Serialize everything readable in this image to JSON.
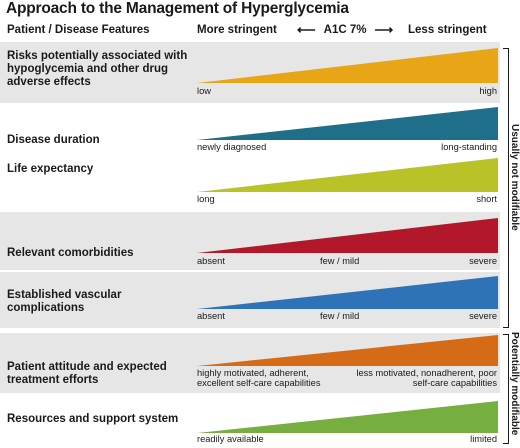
{
  "title": "Approach to the Management of Hyperglycemia",
  "header": {
    "features_label": "Patient / Disease Features",
    "more_stringent": "More stringent",
    "target": "A1C 7%",
    "less_stringent": "Less stringent",
    "arrow_left": "⟵",
    "arrow_right": "⟶"
  },
  "groups": {
    "not_modifiable": "Usually not modifiable",
    "modifiable": "Potentially modifiable"
  },
  "rows": [
    {
      "feature": "Risks potentially associated with hypoglycemia and other drug adverse effects",
      "color": "#E8A617",
      "low": "low",
      "mid": "",
      "high": "high"
    },
    {
      "feature": "Disease duration",
      "color": "#1F6F8B",
      "low": "newly diagnosed",
      "mid": "",
      "high": "long-standing"
    },
    {
      "feature": "Life expectancy",
      "color": "#B9C227",
      "low": "long",
      "mid": "",
      "high": "short"
    },
    {
      "feature": "Relevant comorbidities",
      "color": "#B3172A",
      "low": "absent",
      "mid": "few / mild",
      "high": "severe"
    },
    {
      "feature": "Established vascular complications",
      "color": "#2E73B8",
      "low": "absent",
      "mid": "few / mild",
      "high": "severe"
    },
    {
      "feature": "Patient attitude and expected treatment efforts",
      "color": "#D56B16",
      "low": "highly motivated, adherent, excellent self-care capabilities",
      "mid": "",
      "high": "less motivated, nonadherent, poor self-care capabilities"
    },
    {
      "feature": "Resources and support system",
      "color": "#76AE3F",
      "low": "readily available",
      "mid": "",
      "high": "limited"
    }
  ]
}
